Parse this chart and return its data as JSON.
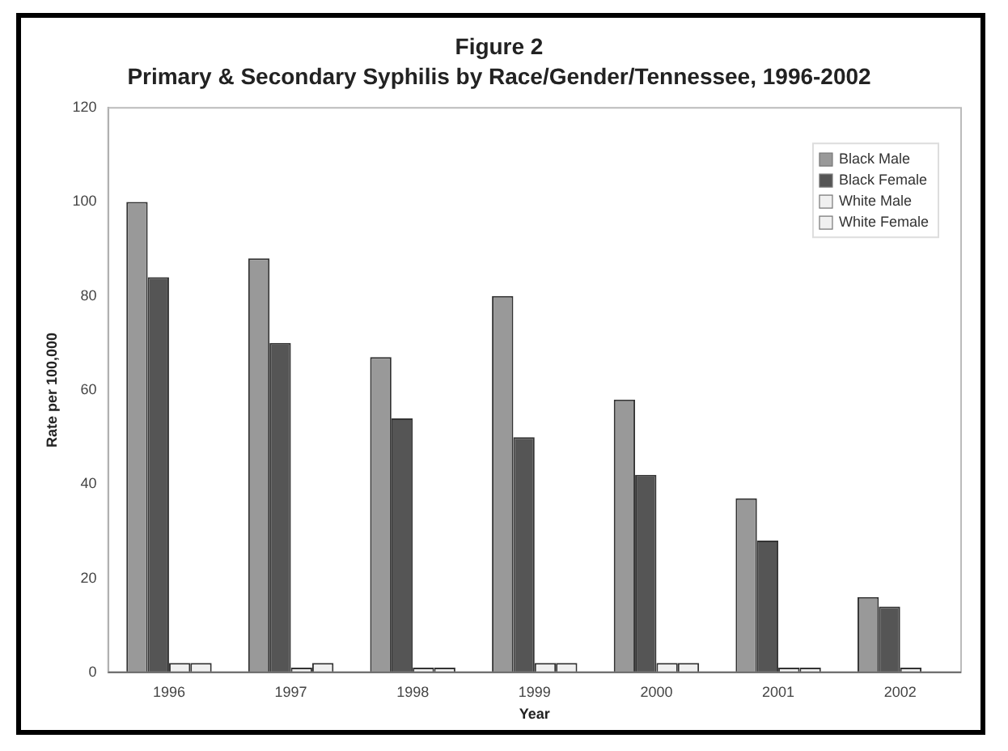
{
  "chart_data": {
    "type": "bar",
    "title": "Figure 2",
    "subtitle": "Primary & Secondary Syphilis by Race/Gender/Tennessee, 1996-2002",
    "xlabel": "Year",
    "ylabel": "Rate per 100,000",
    "categories": [
      "1996",
      "1997",
      "1998",
      "1999",
      "2000",
      "2001",
      "2002"
    ],
    "series": [
      {
        "name": "Black Male",
        "color": "#999999",
        "values": [
          100,
          88,
          67,
          80,
          58,
          37,
          16
        ]
      },
      {
        "name": "Black Female",
        "color": "#555555",
        "values": [
          84,
          70,
          54,
          50,
          42,
          28,
          14
        ]
      },
      {
        "name": "White Male",
        "color": "#f0f0f0",
        "values": [
          2,
          1,
          1,
          2,
          2,
          1,
          1
        ]
      },
      {
        "name": "White Female",
        "color": "#f0f0f0",
        "values": [
          2,
          2,
          1,
          2,
          2,
          1,
          0
        ]
      }
    ],
    "ylim": [
      0,
      120
    ],
    "yticks": [
      0,
      20,
      40,
      60,
      80,
      100,
      120
    ],
    "grid": false,
    "legend": "top right"
  }
}
